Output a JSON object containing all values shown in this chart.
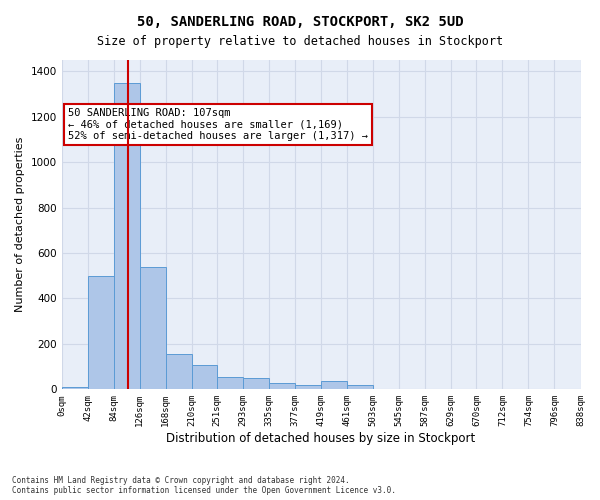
{
  "title1": "50, SANDERLING ROAD, STOCKPORT, SK2 5UD",
  "title2": "Size of property relative to detached houses in Stockport",
  "xlabel": "Distribution of detached houses by size in Stockport",
  "ylabel": "Number of detached properties",
  "footnote": "Contains HM Land Registry data © Crown copyright and database right 2024.\nContains public sector information licensed under the Open Government Licence v3.0.",
  "bar_edges": [
    0,
    42,
    84,
    126,
    168,
    210,
    251,
    293,
    335,
    377,
    419,
    461,
    503,
    545,
    587,
    629,
    670,
    712,
    754,
    796,
    838
  ],
  "bar_heights": [
    10,
    500,
    1350,
    540,
    155,
    105,
    55,
    50,
    30,
    20,
    35,
    20,
    0,
    0,
    0,
    0,
    0,
    0,
    0,
    0
  ],
  "bar_color": "#aec6e8",
  "bar_edgecolor": "#5b9bd5",
  "grid_color": "#d0d8e8",
  "bg_color": "#e8eef8",
  "red_line_x": 107,
  "red_line_color": "#cc0000",
  "annotation_text": "50 SANDERLING ROAD: 107sqm\n← 46% of detached houses are smaller (1,169)\n52% of semi-detached houses are larger (1,317) →",
  "annotation_box_color": "#cc0000",
  "ylim": [
    0,
    1450
  ],
  "yticks": [
    0,
    200,
    400,
    600,
    800,
    1000,
    1200,
    1400
  ],
  "tick_labels": [
    "0sqm",
    "42sqm",
    "84sqm",
    "126sqm",
    "168sqm",
    "210sqm",
    "251sqm",
    "293sqm",
    "335sqm",
    "377sqm",
    "419sqm",
    "461sqm",
    "503sqm",
    "545sqm",
    "587sqm",
    "629sqm",
    "670sqm",
    "712sqm",
    "754sqm",
    "796sqm",
    "838sqm"
  ]
}
